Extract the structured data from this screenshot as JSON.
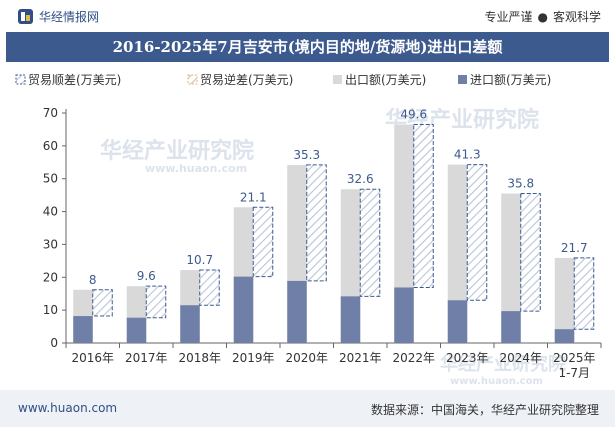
{
  "header": {
    "brand": "华经情报网",
    "tag1": "专业严谨",
    "separator": "●",
    "tag2": "客观科学"
  },
  "title": "2016-2025年7月吉安市(境内目的地/货源地)进出口差额",
  "footer": {
    "website": "www.huaon.com",
    "source": "数据来源：中国海关，华经产业研究院整理"
  },
  "watermark": {
    "text": "华经产业研究院",
    "url": "www.huaon.com"
  },
  "colors": {
    "export": "#d9d9d9",
    "import": "#6f7fa8",
    "surplus_border": "#3d5a8f",
    "hatch": "#b9c4d8",
    "header_bg": "#3d5a8f"
  },
  "chart_data": {
    "type": "bar",
    "categories": [
      "2016年",
      "2017年",
      "2018年",
      "2019年",
      "2020年",
      "2021年",
      "2022年",
      "2023年",
      "2024年",
      "2025年\n1-7月"
    ],
    "legend": [
      "贸易顺差(万美元)",
      "贸易逆差(万美元)",
      "出口额(万美元)",
      "进口额(万美元)"
    ],
    "legend_position": "top-left",
    "series": [
      {
        "name": "贸易顺差(万美元)",
        "values": [
          8,
          9.6,
          10.7,
          21.1,
          35.3,
          32.6,
          49.6,
          41.3,
          35.8,
          21.7
        ]
      },
      {
        "name": "出口额(万美元)",
        "values": [
          16.2,
          17.3,
          22.2,
          41.3,
          54.2,
          46.8,
          66.5,
          54.3,
          45.5,
          25.9
        ]
      },
      {
        "name": "进口额(万美元)",
        "values": [
          8.2,
          7.7,
          11.5,
          20.2,
          18.9,
          14.2,
          16.9,
          13.0,
          9.7,
          4.2
        ]
      }
    ],
    "data_labels": [
      "8",
      "9.6",
      "10.7",
      "21.1",
      "35.3",
      "32.6",
      "49.6",
      "41.3",
      "35.8",
      "21.7"
    ],
    "ylim": [
      0,
      70
    ],
    "yticks": [
      0,
      10,
      20,
      30,
      40,
      50,
      60,
      70
    ],
    "grid": false
  }
}
